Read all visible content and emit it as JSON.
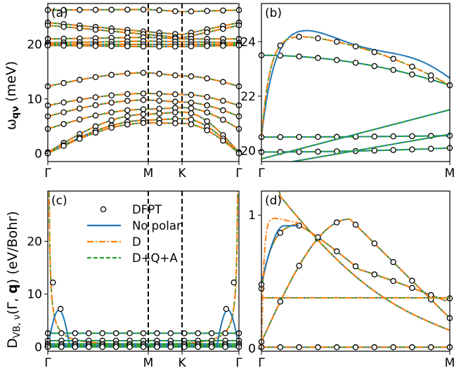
{
  "colors": {
    "dfpt": "#000000",
    "no_polar": "#1f77b4",
    "d": "#ff7f0e",
    "dqa": "#2ca02c",
    "vline": "#000000"
  },
  "ylabels": {
    "top": "ω",
    "top_sub": "qν",
    "top_units": " (meV)",
    "bottom_prefix": "D",
    "bottom_sub": "VB, ν",
    "bottom_args_start": "(Γ, ",
    "bottom_q": "q",
    "bottom_args_end": ") (eV/Bohr)"
  },
  "chart_data": [
    {
      "panel": "(a)",
      "type": "line",
      "x_ticks": [
        "Γ",
        "M",
        "K",
        "Γ"
      ],
      "y_ticks": [
        "0",
        "10",
        "20"
      ],
      "ylim": [
        -1.5,
        27.5
      ],
      "x_range": [
        0,
        3
      ],
      "path_vertices": [
        0,
        1.577,
        2.107,
        3.0
      ],
      "legend": false,
      "series_levels": {
        "top_branches_meV": [
          26.2,
          24.2,
          23.5,
          21.5,
          20.8,
          20.0,
          19.8
        ],
        "mid_branches_meV": [
          12.3,
          15.0,
          11.0
        ],
        "low_branches_meV": [
          8.0,
          7.2,
          6.0,
          5.5
        ]
      }
    },
    {
      "panel": "(b)",
      "type": "line",
      "x_ticks": [
        "Γ",
        "M"
      ],
      "y_ticks": [
        "20",
        "22",
        "24"
      ],
      "ylim": [
        19.6,
        25.4
      ],
      "legend": false
    },
    {
      "panel": "(c)",
      "type": "line",
      "x_ticks": [
        "Γ",
        "M",
        "K",
        "Γ"
      ],
      "y_ticks": [
        "0",
        "10",
        "20"
      ],
      "ylim": [
        -0.8,
        29.5
      ],
      "legend": true,
      "legend_location": "top-center",
      "series": [
        {
          "name": "DFPT",
          "style": "markers"
        },
        {
          "name": "No polar",
          "style": "solid"
        },
        {
          "name": "D",
          "style": "dash-dot"
        },
        {
          "name": "D+Q+A",
          "style": "dashed"
        }
      ]
    },
    {
      "panel": "(d)",
      "type": "line",
      "x_ticks": [
        "Γ",
        "M"
      ],
      "y_ticks": [
        "0",
        "1"
      ],
      "ylim": [
        -0.02,
        1.18
      ],
      "legend": false
    }
  ]
}
